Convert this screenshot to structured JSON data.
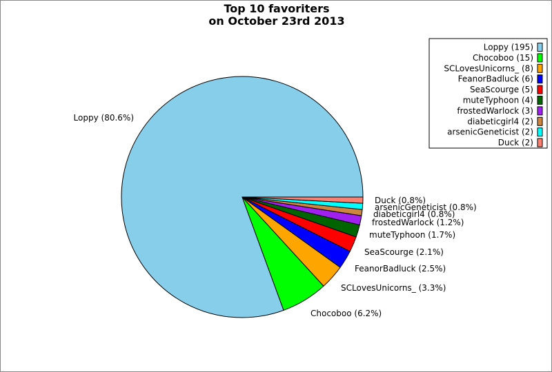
{
  "chart_data": {
    "type": "pie",
    "title": [
      "Top 10 favoriters",
      "on October 23rd 2013"
    ],
    "categories": [
      "Loppy",
      "Chocoboo",
      "SCLovesUnicorns_",
      "FeanorBadluck",
      "SeaScourge",
      "muteTyphoon",
      "frostedWarlock",
      "diabeticgirl4",
      "arsenicGeneticist",
      "Duck"
    ],
    "values": [
      195,
      15,
      8,
      6,
      5,
      4,
      3,
      2,
      2,
      2
    ],
    "slice_labels": [
      "Loppy (80.6%)",
      "Chocoboo (6.2%)",
      "SCLovesUnicorns_ (3.3%)",
      "FeanorBadluck (2.5%)",
      "SeaScourge (2.1%)",
      "muteTyphoon (1.7%)",
      "frostedWarlock (1.2%)",
      "diabeticgirl4 (0.8%)",
      "arsenicGeneticist (0.8%)",
      "Duck (0.8%)"
    ],
    "legend": [
      "Loppy (195)",
      "Chocoboo (15)",
      "SCLovesUnicorns_ (8)",
      "FeanorBadluck (6)",
      "SeaScourge (5)",
      "muteTyphoon (4)",
      "frostedWarlock (3)",
      "diabeticgirl4 (2)",
      "arsenicGeneticist (2)",
      "Duck (2)"
    ],
    "colors": [
      "#87ceeb",
      "#00ff00",
      "#ffa500",
      "#0000ff",
      "#ff0000",
      "#006400",
      "#a020f0",
      "#cd853f",
      "#00ffff",
      "#fa8072"
    ],
    "start_angle": "east, counterclockwise",
    "legend_position": "top-right"
  }
}
